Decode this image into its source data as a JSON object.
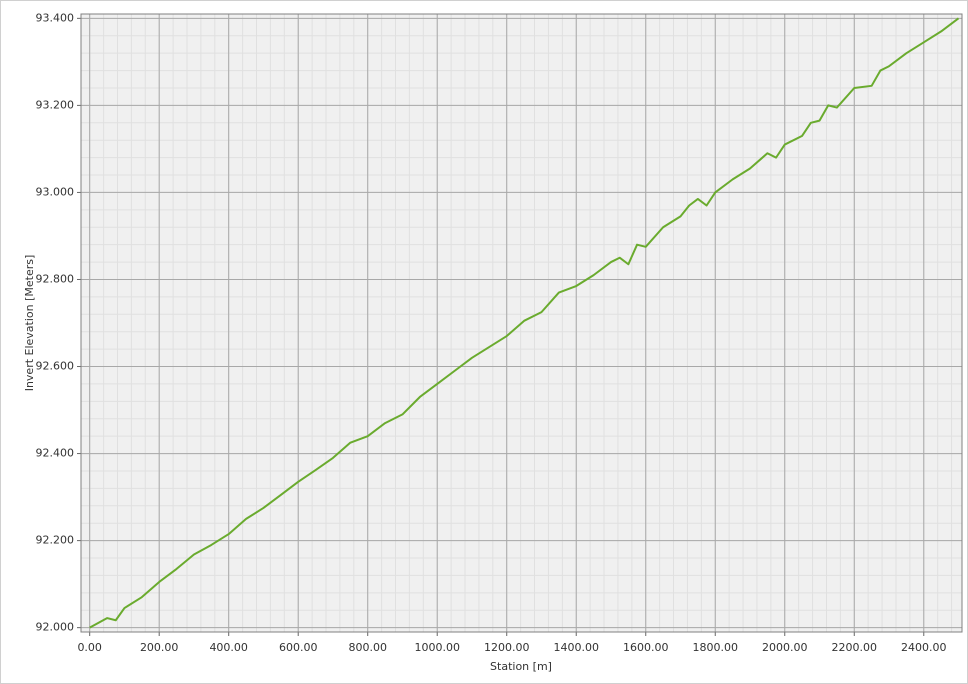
{
  "chart_data": {
    "type": "line",
    "x_label": "Station [m]",
    "y_label": "Invert Elevation [Meters]",
    "x": [
      0,
      50,
      75,
      100,
      150,
      200,
      250,
      300,
      350,
      400,
      450,
      500,
      550,
      600,
      650,
      700,
      750,
      800,
      850,
      900,
      950,
      1000,
      1050,
      1100,
      1150,
      1200,
      1250,
      1300,
      1350,
      1400,
      1450,
      1500,
      1525,
      1550,
      1575,
      1600,
      1650,
      1700,
      1725,
      1750,
      1775,
      1800,
      1850,
      1900,
      1950,
      1975,
      2000,
      2050,
      2075,
      2100,
      2125,
      2150,
      2200,
      2250,
      2275,
      2300,
      2350,
      2400,
      2450,
      2500
    ],
    "series": [
      {
        "color": "#6aab2e",
        "values": [
          92.0,
          92.022,
          92.017,
          92.045,
          92.07,
          92.105,
          92.135,
          92.168,
          92.19,
          92.215,
          92.25,
          92.275,
          92.305,
          92.335,
          92.362,
          92.39,
          92.425,
          92.44,
          92.47,
          92.49,
          92.53,
          92.56,
          92.59,
          92.62,
          92.645,
          92.67,
          92.705,
          92.725,
          92.77,
          92.785,
          92.81,
          92.84,
          92.85,
          92.835,
          92.88,
          92.875,
          92.92,
          92.945,
          92.97,
          92.985,
          92.97,
          93.0,
          93.03,
          93.055,
          93.09,
          93.08,
          93.11,
          93.13,
          93.16,
          93.165,
          93.2,
          93.195,
          93.24,
          93.245,
          93.28,
          93.29,
          93.32,
          93.345,
          93.37,
          93.4
        ]
      }
    ],
    "xlim": [
      -25,
      2510
    ],
    "ylim": [
      91.99,
      93.41
    ],
    "xticks": [
      {
        "value": 0,
        "label": "0.00"
      },
      {
        "value": 200,
        "label": "200.00"
      },
      {
        "value": 400,
        "label": "400.00"
      },
      {
        "value": 600,
        "label": "600.00"
      },
      {
        "value": 800,
        "label": "800.00"
      },
      {
        "value": 1000,
        "label": "1000.00"
      },
      {
        "value": 1200,
        "label": "1200.00"
      },
      {
        "value": 1400,
        "label": "1400.00"
      },
      {
        "value": 1600,
        "label": "1600.00"
      },
      {
        "value": 1800,
        "label": "1800.00"
      },
      {
        "value": 2000,
        "label": "2000.00"
      },
      {
        "value": 2200,
        "label": "2200.00"
      },
      {
        "value": 2400,
        "label": "2400.00"
      }
    ],
    "yticks": [
      {
        "value": 92,
        "label": "92.000"
      },
      {
        "value": 92.2,
        "label": "92.200"
      },
      {
        "value": 92.4,
        "label": "92.400"
      },
      {
        "value": 92.6,
        "label": "92.600"
      },
      {
        "value": 92.8,
        "label": "92.800"
      },
      {
        "value": 93,
        "label": "93.000"
      },
      {
        "value": 93.2,
        "label": "93.200"
      },
      {
        "value": 93.4,
        "label": "93.400"
      }
    ],
    "grid": true
  }
}
